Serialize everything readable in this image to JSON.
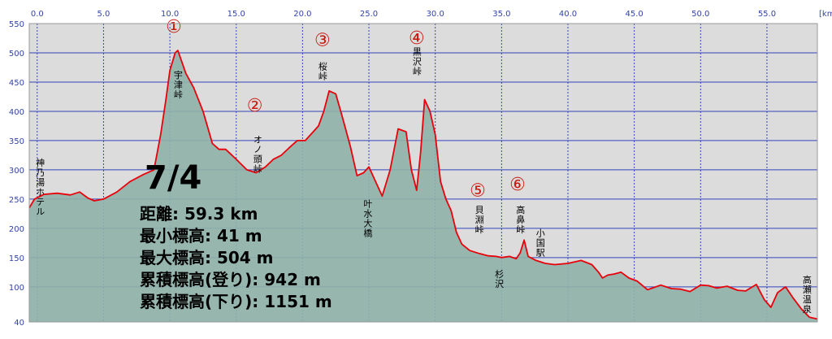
{
  "chart_data": {
    "type": "area",
    "x_unit_label": "[km]",
    "xlim": [
      -0.6,
      58.8
    ],
    "ylim": [
      40,
      550
    ],
    "x_ticks": [
      0,
      5,
      10,
      15,
      20,
      25,
      30,
      35,
      40,
      45,
      50,
      55
    ],
    "x_tick_labels": [
      "0.0",
      "5.0",
      "10.0",
      "15.0",
      "20.0",
      "25.0",
      "30.0",
      "35.0",
      "40.0",
      "45.0",
      "50.0",
      "55.0"
    ],
    "y_ticks": [
      550,
      500,
      450,
      400,
      350,
      300,
      250,
      200,
      150,
      100,
      40
    ],
    "grid": true,
    "series": [
      {
        "name": "",
        "x": [
          -0.6,
          -0.2,
          0.5,
          1.5,
          2.5,
          3.2,
          3.8,
          4.3,
          5.0,
          6.0,
          7.0,
          8.0,
          8.8,
          9.3,
          9.7,
          10.0,
          10.4,
          10.6,
          11.2,
          11.8,
          12.5,
          13.2,
          13.7,
          14.2,
          15.0,
          15.8,
          16.5,
          17.2,
          17.8,
          18.4,
          19.0,
          19.6,
          20.2,
          20.8,
          21.2,
          21.6,
          22.0,
          22.5,
          23.0,
          23.6,
          24.1,
          24.6,
          25.0,
          25.5,
          26.0,
          26.6,
          27.2,
          27.8,
          28.2,
          28.6,
          28.9,
          29.2,
          29.6,
          30.0,
          30.4,
          30.8,
          31.2,
          31.6,
          32.0,
          32.6,
          33.3,
          34.0,
          34.6,
          35.0,
          35.6,
          36.1,
          36.4,
          36.7,
          37.0,
          37.6,
          38.3,
          39.0,
          40.0,
          41.0,
          41.8,
          42.3,
          42.6,
          43.0,
          43.5,
          44.0,
          44.6,
          45.2,
          46.0,
          47.0,
          47.8,
          48.5,
          49.2,
          50.0,
          50.6,
          51.2,
          52.0,
          52.8,
          53.4,
          54.2,
          54.8,
          55.3,
          55.8,
          56.4,
          57.0,
          57.6,
          58.2,
          58.8
        ],
        "y": [
          235,
          250,
          258,
          260,
          257,
          262,
          252,
          247,
          250,
          262,
          280,
          292,
          300,
          360,
          420,
          470,
          500,
          504,
          465,
          440,
          400,
          345,
          335,
          335,
          318,
          300,
          295,
          305,
          318,
          325,
          338,
          350,
          350,
          365,
          375,
          400,
          435,
          430,
          390,
          340,
          290,
          295,
          305,
          280,
          255,
          300,
          370,
          365,
          300,
          265,
          330,
          420,
          400,
          360,
          280,
          250,
          230,
          193,
          173,
          162,
          157,
          153,
          152,
          150,
          152,
          148,
          158,
          180,
          152,
          145,
          140,
          138,
          140,
          145,
          138,
          125,
          115,
          120,
          122,
          125,
          115,
          110,
          95,
          103,
          97,
          96,
          92,
          103,
          102,
          98,
          101,
          94,
          93,
          104,
          78,
          65,
          90,
          100,
          80,
          62,
          48,
          45
        ]
      }
    ],
    "annotations": [
      {
        "label": "神乃湯ホテル",
        "x": 0.2,
        "y": 320,
        "vertical": true
      },
      {
        "label": "宇津峠",
        "x": 10.6,
        "y": 470,
        "vertical": true
      },
      {
        "label": "オノ頭峠",
        "x": 16.6,
        "y": 360,
        "vertical": true
      },
      {
        "label": "桜峠",
        "x": 21.5,
        "y": 485,
        "vertical": true
      },
      {
        "label": "叶水大橋",
        "x": 24.9,
        "y": 250,
        "vertical": true
      },
      {
        "label": "黒沢峠",
        "x": 28.6,
        "y": 510,
        "vertical": true
      },
      {
        "label": "貝淵峠",
        "x": 33.3,
        "y": 240,
        "vertical": true
      },
      {
        "label": "杉沢",
        "x": 34.8,
        "y": 130,
        "vertical": true
      },
      {
        "label": "高鼻峠",
        "x": 36.4,
        "y": 240,
        "vertical": true
      },
      {
        "label": "小国駅",
        "x": 37.9,
        "y": 200,
        "vertical": true
      },
      {
        "label": "高瀬温泉",
        "x": 58.0,
        "y": 120,
        "vertical": true
      }
    ],
    "markers": [
      {
        "label": "①",
        "x": 10.3,
        "y": 535
      },
      {
        "label": "②",
        "x": 16.4,
        "y": 400
      },
      {
        "label": "③",
        "x": 21.5,
        "y": 512
      },
      {
        "label": "④",
        "x": 28.6,
        "y": 515
      },
      {
        "label": "⑤",
        "x": 33.2,
        "y": 255
      },
      {
        "label": "⑥",
        "x": 36.2,
        "y": 265
      }
    ],
    "summary": {
      "date": "7/4",
      "lines": [
        "距離: 59.3 km",
        "最小標高: 41 m",
        "最大標高: 504 m",
        "累積標高(登り): 942 m",
        "累積標高(下り): 1151 m"
      ]
    }
  }
}
